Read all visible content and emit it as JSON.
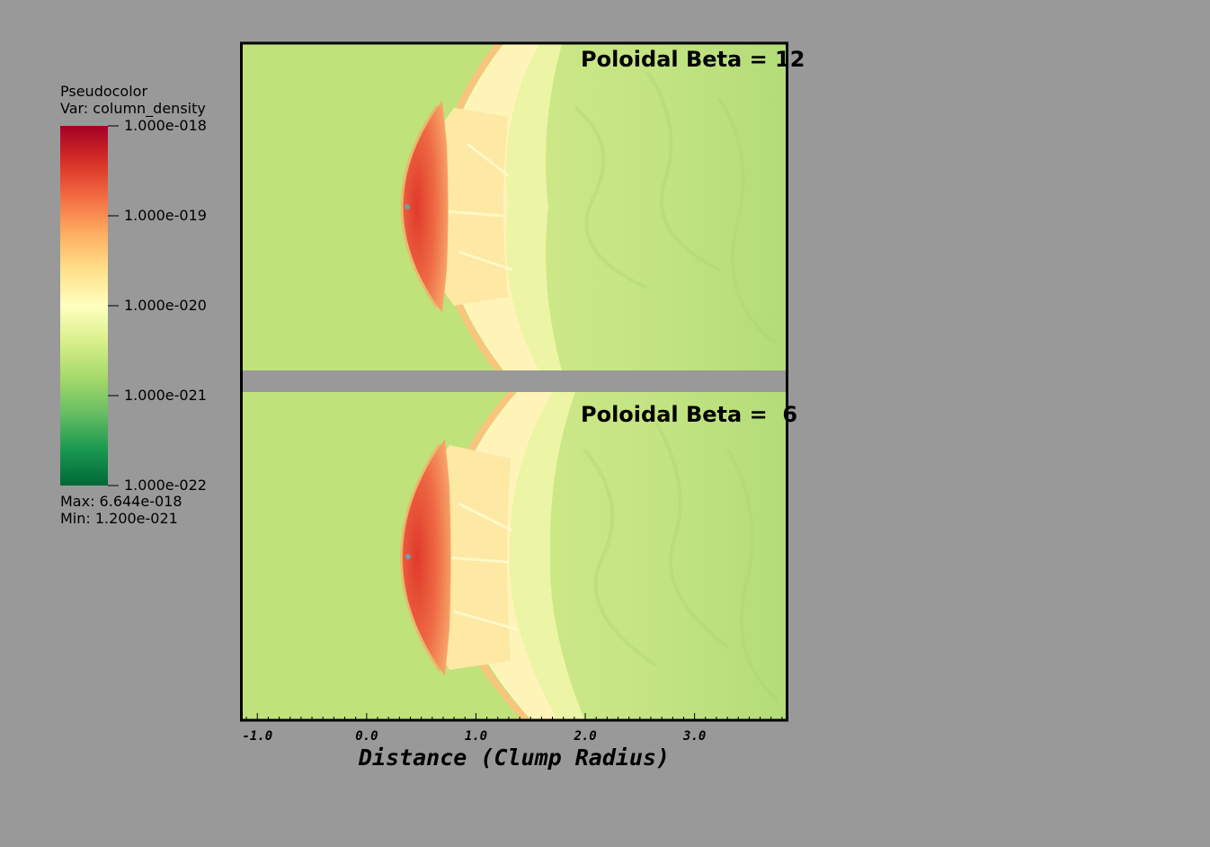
{
  "legend": {
    "title_line1": "Pseudocolor",
    "title_line2": "Var: column_density",
    "ticks": [
      "1.000e-018",
      "1.000e-019",
      "1.000e-020",
      "1.000e-021",
      "1.000e-022"
    ],
    "max_label": "Max:  6.644e-018",
    "min_label": "Min:  1.200e-021",
    "colormap": [
      "#a50026",
      "#d73027",
      "#f46d43",
      "#fdae61",
      "#fee08b",
      "#ffffbf",
      "#d9ef8b",
      "#a6d96a",
      "#66bd63",
      "#1a9850",
      "#006837"
    ]
  },
  "chart_data": {
    "type": "heatmap",
    "variable": "column_density",
    "scale": "log",
    "colorbar_range": [
      1e-22,
      1e-18
    ],
    "data_max": 6.644e-18,
    "data_min": 1.2e-21,
    "xlabel": "Distance (Clump Radius)",
    "x_ticks": [
      "-1.0",
      "0.0",
      "1.0",
      "2.0",
      "3.0"
    ],
    "xlim": [
      -1.15,
      3.85
    ],
    "panels": [
      {
        "label": "Poloidal Beta = 12",
        "clump_x": 0.3,
        "bow_apex_x": 0.15
      },
      {
        "label": "Poloidal Beta =  6",
        "clump_x": 0.3,
        "bow_apex_x": 0.12
      }
    ]
  }
}
